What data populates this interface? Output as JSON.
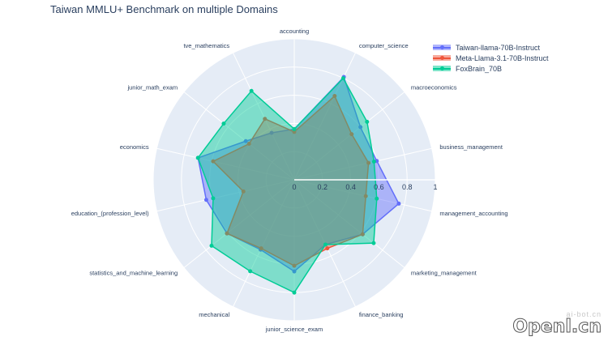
{
  "title": "Taiwan MMLU+ Benchmark on multiple Domains",
  "watermark": {
    "small": "ai-bot.cn",
    "big": "Openl.cn"
  },
  "chart_data": {
    "type": "radar",
    "title": "Taiwan MMLU+ Benchmark on multiple Domains",
    "categories": [
      "accounting",
      "computer_science",
      "macroeconomics",
      "business_management",
      "management_accounting",
      "marketing_management",
      "finance_banking",
      "junior_science_exam",
      "mechanical",
      "statistics_and_machine_learning",
      "education_(profession_level)",
      "economics",
      "junior_math_exam",
      "tve_mathematics"
    ],
    "radial_ticks": [
      "0",
      "0.2",
      "0.4",
      "0.6",
      "0.8",
      "1"
    ],
    "radial_range": [
      0,
      1
    ],
    "legend_position": "top-right",
    "series": [
      {
        "name": "Taiwan-llama-70B-Instruct",
        "color": "#636efa",
        "values": [
          0.36,
          0.81,
          0.6,
          0.6,
          0.76,
          0.62,
          0.51,
          0.65,
          0.55,
          0.61,
          0.64,
          0.7,
          0.44,
          0.37
        ]
      },
      {
        "name": "Meta-Llama-3.1-70B-Instruct",
        "color": "#ef553b",
        "values": [
          0.34,
          0.66,
          0.52,
          0.54,
          0.52,
          0.62,
          0.54,
          0.61,
          0.54,
          0.61,
          0.37,
          0.59,
          0.41,
          0.48
        ]
      },
      {
        "name": "FoxBrain_70B",
        "color": "#00cc96",
        "values": [
          0.36,
          0.8,
          0.66,
          0.58,
          0.6,
          0.72,
          0.51,
          0.8,
          0.72,
          0.75,
          0.59,
          0.7,
          0.64,
          0.7
        ]
      }
    ]
  }
}
